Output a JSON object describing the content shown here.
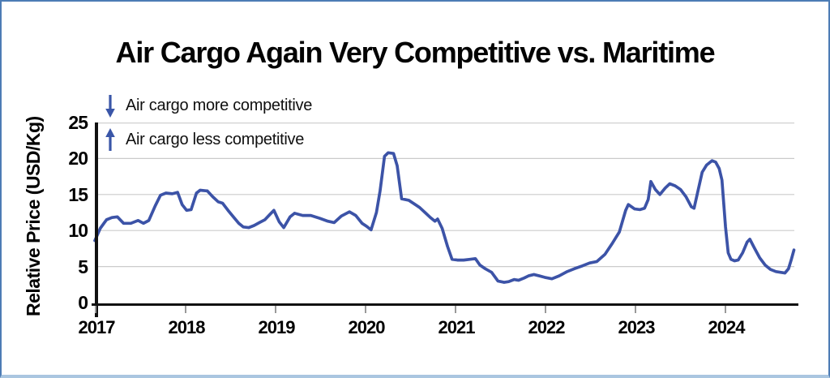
{
  "chart": {
    "title": "Air Cargo Again Very Competitive vs. Maritime",
    "y_axis_title": "Relative Price (USD/Kg)",
    "legend": [
      {
        "icon": "arrow-down-icon",
        "label": "Air cargo more competitive"
      },
      {
        "icon": "arrow-up-icon",
        "label": "Air cargo less competitive"
      }
    ],
    "colors": {
      "line": "#3c53a7",
      "arrow": "#3a56a8",
      "grid": "#cbcbcb",
      "axis": "#111111",
      "frame_border": "#4d7cb5"
    }
  },
  "chart_data": {
    "type": "line",
    "title": "Air Cargo Again Very Competitive vs. Maritime",
    "xlabel": "",
    "ylabel": "Relative Price (USD/Kg)",
    "x_ticks": [
      2017,
      2018,
      2019,
      2020,
      2021,
      2022,
      2023,
      2024
    ],
    "y_ticks": [
      0,
      5,
      10,
      15,
      20,
      25
    ],
    "xlim": [
      2017,
      2024.77
    ],
    "ylim": [
      0,
      25
    ],
    "grid": "horizontal",
    "legend_position": "top-left",
    "points": [
      [
        2017.0,
        8.6
      ],
      [
        2017.06,
        10.3
      ],
      [
        2017.13,
        11.5
      ],
      [
        2017.19,
        11.8
      ],
      [
        2017.25,
        11.9
      ],
      [
        2017.32,
        11.0
      ],
      [
        2017.4,
        11.0
      ],
      [
        2017.48,
        11.4
      ],
      [
        2017.54,
        11.0
      ],
      [
        2017.6,
        11.4
      ],
      [
        2017.67,
        13.4
      ],
      [
        2017.73,
        14.9
      ],
      [
        2017.79,
        15.2
      ],
      [
        2017.86,
        15.1
      ],
      [
        2017.92,
        15.3
      ],
      [
        2017.97,
        13.6
      ],
      [
        2018.02,
        12.8
      ],
      [
        2018.07,
        12.9
      ],
      [
        2018.13,
        15.2
      ],
      [
        2018.17,
        15.6
      ],
      [
        2018.25,
        15.5
      ],
      [
        2018.31,
        14.7
      ],
      [
        2018.37,
        14.0
      ],
      [
        2018.42,
        13.8
      ],
      [
        2018.48,
        12.8
      ],
      [
        2018.54,
        11.9
      ],
      [
        2018.6,
        11.0
      ],
      [
        2018.65,
        10.5
      ],
      [
        2018.71,
        10.4
      ],
      [
        2018.77,
        10.7
      ],
      [
        2018.83,
        11.1
      ],
      [
        2018.89,
        11.5
      ],
      [
        2018.95,
        12.3
      ],
      [
        2018.99,
        12.8
      ],
      [
        2019.05,
        11.2
      ],
      [
        2019.1,
        10.4
      ],
      [
        2019.17,
        11.9
      ],
      [
        2019.22,
        12.4
      ],
      [
        2019.31,
        12.1
      ],
      [
        2019.4,
        12.1
      ],
      [
        2019.5,
        11.7
      ],
      [
        2019.59,
        11.3
      ],
      [
        2019.66,
        11.1
      ],
      [
        2019.74,
        12.0
      ],
      [
        2019.83,
        12.6
      ],
      [
        2019.9,
        12.1
      ],
      [
        2019.97,
        11.0
      ],
      [
        2020.02,
        10.6
      ],
      [
        2020.07,
        10.1
      ],
      [
        2020.13,
        12.5
      ],
      [
        2020.17,
        15.5
      ],
      [
        2020.22,
        20.3
      ],
      [
        2020.26,
        20.8
      ],
      [
        2020.32,
        20.7
      ],
      [
        2020.36,
        19.0
      ],
      [
        2020.41,
        14.4
      ],
      [
        2020.49,
        14.2
      ],
      [
        2020.55,
        13.7
      ],
      [
        2020.61,
        13.2
      ],
      [
        2020.67,
        12.5
      ],
      [
        2020.73,
        11.8
      ],
      [
        2020.78,
        11.3
      ],
      [
        2020.81,
        11.6
      ],
      [
        2020.86,
        10.3
      ],
      [
        2020.92,
        7.8
      ],
      [
        2020.97,
        6.0
      ],
      [
        2021.03,
        5.9
      ],
      [
        2021.1,
        5.9
      ],
      [
        2021.17,
        6.0
      ],
      [
        2021.23,
        6.1
      ],
      [
        2021.28,
        5.2
      ],
      [
        2021.34,
        4.7
      ],
      [
        2021.41,
        4.2
      ],
      [
        2021.48,
        3.0
      ],
      [
        2021.55,
        2.8
      ],
      [
        2021.6,
        2.9
      ],
      [
        2021.66,
        3.2
      ],
      [
        2021.71,
        3.1
      ],
      [
        2021.77,
        3.4
      ],
      [
        2021.82,
        3.7
      ],
      [
        2021.88,
        3.9
      ],
      [
        2021.94,
        3.7
      ],
      [
        2022.0,
        3.5
      ],
      [
        2022.08,
        3.3
      ],
      [
        2022.16,
        3.7
      ],
      [
        2022.25,
        4.3
      ],
      [
        2022.33,
        4.7
      ],
      [
        2022.42,
        5.1
      ],
      [
        2022.5,
        5.5
      ],
      [
        2022.58,
        5.7
      ],
      [
        2022.67,
        6.7
      ],
      [
        2022.75,
        8.2
      ],
      [
        2022.83,
        9.8
      ],
      [
        2022.9,
        12.8
      ],
      [
        2022.93,
        13.6
      ],
      [
        2023.0,
        13.0
      ],
      [
        2023.06,
        12.9
      ],
      [
        2023.11,
        13.1
      ],
      [
        2023.15,
        14.3
      ],
      [
        2023.18,
        16.8
      ],
      [
        2023.23,
        15.7
      ],
      [
        2023.28,
        15.0
      ],
      [
        2023.34,
        15.9
      ],
      [
        2023.39,
        16.5
      ],
      [
        2023.45,
        16.2
      ],
      [
        2023.51,
        15.7
      ],
      [
        2023.57,
        14.7
      ],
      [
        2023.63,
        13.3
      ],
      [
        2023.66,
        13.1
      ],
      [
        2023.7,
        15.3
      ],
      [
        2023.75,
        18.1
      ],
      [
        2023.8,
        19.1
      ],
      [
        2023.86,
        19.7
      ],
      [
        2023.9,
        19.5
      ],
      [
        2023.94,
        18.6
      ],
      [
        2023.97,
        17.0
      ],
      [
        2024.01,
        10.5
      ],
      [
        2024.04,
        6.9
      ],
      [
        2024.07,
        6.0
      ],
      [
        2024.11,
        5.8
      ],
      [
        2024.15,
        5.9
      ],
      [
        2024.2,
        6.9
      ],
      [
        2024.25,
        8.4
      ],
      [
        2024.28,
        8.8
      ],
      [
        2024.33,
        7.6
      ],
      [
        2024.39,
        6.2
      ],
      [
        2024.45,
        5.2
      ],
      [
        2024.51,
        4.6
      ],
      [
        2024.57,
        4.3
      ],
      [
        2024.62,
        4.2
      ],
      [
        2024.67,
        4.1
      ],
      [
        2024.71,
        4.7
      ],
      [
        2024.74,
        5.9
      ],
      [
        2024.77,
        7.3
      ]
    ]
  }
}
